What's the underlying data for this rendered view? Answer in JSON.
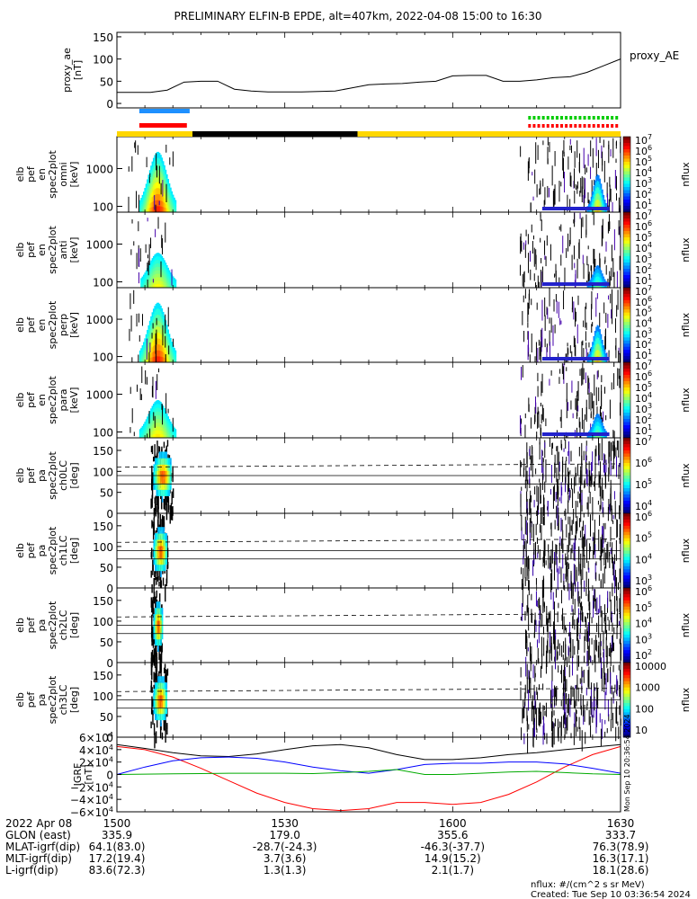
{
  "title": "PRELIMINARY ELFIN-B EPDE, alt=407km, 2022-04-08 15:00 to 16:30",
  "chart_data": [
    {
      "type": "line",
      "name": "proxy_ae",
      "ylabel": [
        "proxy_ae",
        "[nT]"
      ],
      "legend": "proxy_AE",
      "ylim": [
        -10,
        160
      ],
      "yticks": [
        "150",
        "100",
        "50",
        "0"
      ],
      "x_min": [
        0,
        3,
        6,
        9,
        12,
        15,
        18,
        21,
        24,
        27,
        30,
        33,
        36,
        39,
        42,
        45,
        48,
        51,
        54,
        57,
        60,
        63,
        66,
        69,
        72,
        75,
        78,
        81,
        84,
        87,
        90
      ],
      "values": [
        25,
        25,
        25,
        30,
        48,
        50,
        50,
        32,
        28,
        26,
        26,
        26,
        27,
        28,
        35,
        42,
        44,
        45,
        48,
        50,
        62,
        63,
        63,
        50,
        50,
        53,
        58,
        60,
        70,
        85,
        100
      ]
    },
    {
      "type": "heatmap",
      "name": "spectrogram-omni",
      "ylabel": [
        "elb",
        "pef",
        "en",
        "spec2plot",
        "omni",
        "[keV]"
      ],
      "yticks": [
        "1000",
        "100"
      ],
      "colorbar": {
        "label": "nflux",
        "ticks": [
          "10",
          "10",
          "10",
          "10",
          "10",
          "10",
          "10"
        ],
        "exps": [
          "7",
          "6",
          "5",
          "4",
          "3",
          "2",
          "1"
        ]
      }
    },
    {
      "type": "heatmap",
      "name": "spectrogram-anti",
      "ylabel": [
        "elb",
        "pef",
        "en",
        "spec2plot",
        "anti",
        "[keV]"
      ],
      "yticks": [
        "1000",
        "100"
      ],
      "colorbar": {
        "label": "nflux",
        "ticks": [
          "10",
          "10",
          "10",
          "10",
          "10",
          "10",
          "10"
        ],
        "exps": [
          "7",
          "6",
          "5",
          "4",
          "3",
          "2",
          "1"
        ]
      }
    },
    {
      "type": "heatmap",
      "name": "spectrogram-perp",
      "ylabel": [
        "elb",
        "pef",
        "en",
        "spec2plot",
        "perp",
        "[keV]"
      ],
      "yticks": [
        "1000",
        "100"
      ],
      "colorbar": {
        "label": "nflux",
        "ticks": [
          "10",
          "10",
          "10",
          "10",
          "10",
          "10",
          "10"
        ],
        "exps": [
          "7",
          "6",
          "5",
          "4",
          "3",
          "2",
          "1"
        ]
      }
    },
    {
      "type": "heatmap",
      "name": "spectrogram-para",
      "ylabel": [
        "elb",
        "pef",
        "en",
        "spec2plot",
        "para",
        "[keV]"
      ],
      "yticks": [
        "1000",
        "100"
      ],
      "colorbar": {
        "label": "nflux",
        "ticks": [
          "10",
          "10",
          "10",
          "10",
          "10",
          "10",
          "10"
        ],
        "exps": [
          "7",
          "6",
          "5",
          "4",
          "3",
          "2",
          "1"
        ]
      }
    },
    {
      "type": "heatmap",
      "name": "pitch-angle-ch0LC",
      "ylabel": [
        "elb",
        "pef",
        "pa",
        "spec2plot",
        "ch0LC",
        "[deg]"
      ],
      "yticks": [
        "150",
        "100",
        "50",
        "0"
      ],
      "colorbar": {
        "label": "nflux",
        "ticks": [
          "10",
          "10",
          "10",
          "10"
        ],
        "exps": [
          "7",
          "6",
          "5",
          "4"
        ]
      }
    },
    {
      "type": "heatmap",
      "name": "pitch-angle-ch1LC",
      "ylabel": [
        "elb",
        "pef",
        "pa",
        "spec2plot",
        "ch1LC",
        "[deg]"
      ],
      "yticks": [
        "150",
        "100",
        "50",
        "0"
      ],
      "colorbar": {
        "label": "nflux",
        "ticks": [
          "10",
          "10",
          "10",
          "10"
        ],
        "exps": [
          "6",
          "5",
          "4",
          "3"
        ]
      }
    },
    {
      "type": "heatmap",
      "name": "pitch-angle-ch2LC",
      "ylabel": [
        "elb",
        "pef",
        "pa",
        "spec2plot",
        "ch2LC",
        "[deg]"
      ],
      "yticks": [
        "150",
        "100",
        "50",
        "0"
      ],
      "colorbar": {
        "label": "nflux",
        "ticks": [
          "10",
          "10",
          "10",
          "10",
          "10"
        ],
        "exps": [
          "6",
          "5",
          "4",
          "3",
          "2"
        ]
      }
    },
    {
      "type": "heatmap",
      "name": "pitch-angle-ch3LC",
      "ylabel": [
        "elb",
        "pef",
        "pa",
        "spec2plot",
        "ch3LC",
        "[deg]"
      ],
      "yticks": [
        "150",
        "100",
        "50",
        "0"
      ],
      "colorbar": {
        "label": "nflux",
        "ticks": [
          "10000",
          "1000",
          "100",
          "10"
        ],
        "exps": [
          "",
          "",
          "",
          ""
        ]
      }
    },
    {
      "type": "line",
      "name": "IGRF",
      "ylabel": [
        "IGRF",
        "[nT]"
      ],
      "ylim": [
        -60000,
        60000
      ],
      "yticks": [
        {
          "base": "6×10",
          "exp": "4"
        },
        {
          "base": "4×10",
          "exp": "4"
        },
        {
          "base": "2×10",
          "exp": "4"
        },
        {
          "base": "0",
          "exp": ""
        },
        {
          "base": "−2×10",
          "exp": "4"
        },
        {
          "base": "−4×10",
          "exp": "4"
        },
        {
          "base": "−6×10",
          "exp": "4"
        }
      ],
      "x_min": [
        0,
        5,
        10,
        15,
        20,
        25,
        30,
        35,
        40,
        45,
        50,
        55,
        60,
        65,
        70,
        75,
        80,
        85,
        90
      ],
      "series": [
        {
          "name": "total",
          "color": "#000000",
          "values": [
            48000,
            42000,
            35000,
            30000,
            29000,
            33000,
            40000,
            46000,
            48000,
            43000,
            32000,
            24000,
            24000,
            27000,
            32000,
            35000,
            40000,
            44000,
            48000
          ]
        },
        {
          "name": "x",
          "color": "#ff0000",
          "values": [
            45000,
            40000,
            28000,
            10000,
            -10000,
            -30000,
            -45000,
            -55000,
            -58000,
            -55000,
            -45000,
            -45000,
            -48000,
            -45000,
            -32000,
            -12000,
            12000,
            32000,
            45000
          ]
        },
        {
          "name": "y",
          "color": "#0000ff",
          "values": [
            0,
            12000,
            22000,
            27000,
            28000,
            26000,
            20000,
            12000,
            6000,
            2000,
            8000,
            16000,
            18000,
            18000,
            20000,
            20000,
            17000,
            10000,
            2000
          ]
        },
        {
          "name": "z",
          "color": "#00aa00",
          "values": [
            0,
            500,
            1000,
            1500,
            2000,
            2000,
            2000,
            1500,
            3000,
            5000,
            8000,
            0,
            0,
            2000,
            4000,
            5000,
            3000,
            1000,
            0
          ]
        }
      ]
    }
  ],
  "axis": {
    "rows": [
      {
        "label": "2022 Apr 08",
        "vals": [
          "1500",
          "1530",
          "1600",
          "1630"
        ]
      },
      {
        "label": "GLON (east)",
        "vals": [
          "335.9",
          "179.0",
          "355.6",
          "333.7"
        ]
      },
      {
        "label": "MLAT-igrf(dip)",
        "vals": [
          "64.1(83.0)",
          "-28.7(-24.3)",
          "-46.3(-37.7)",
          "76.3(78.9)"
        ]
      },
      {
        "label": "MLT-igrf(dip)",
        "vals": [
          "17.2(19.4)",
          "3.7(3.6)",
          "14.9(15.2)",
          "16.3(17.1)"
        ]
      },
      {
        "label": "L-igrf(dip)",
        "vals": [
          "83.6(72.3)",
          "1.3(1.3)",
          "2.1(1.7)",
          "18.1(28.6)"
        ]
      }
    ]
  },
  "footer": {
    "units": "nflux: #/(cm^2 s sr MeV)",
    "created": "Created: Tue Sep 10 03:36:54 2024",
    "side_stamp": "Mon Sep 10 20:36:54 2024"
  },
  "colors": {
    "sunlit_bar": "#ffd700",
    "shadow_bar": "#000000",
    "blue_marker": "#1e90ff",
    "red_marker": "#ff0000",
    "green_dots": "#00cc00",
    "red_dots": "#ff0000"
  }
}
